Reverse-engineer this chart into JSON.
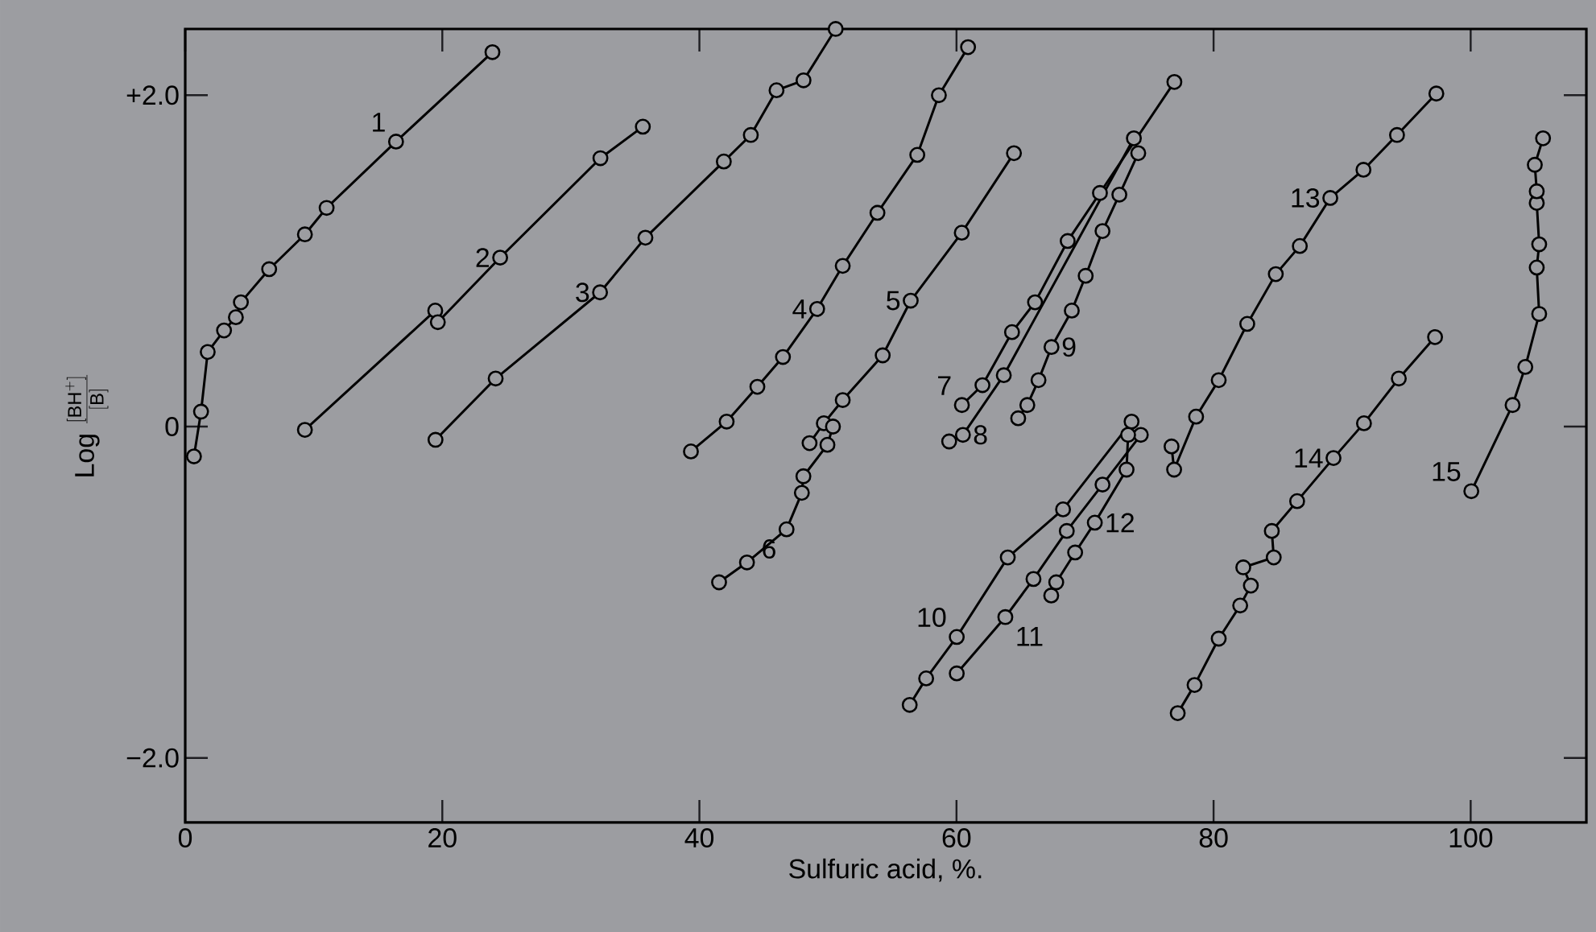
{
  "chart_data": {
    "type": "line",
    "xlabel": "Sulfuric acid, %.",
    "ylabel": "\\mathrm{Log}\\;\\frac{[\\mathrm{BH}^{+}]}{[\\mathrm{B}]}",
    "xlim": [
      0,
      109
    ],
    "ylim": [
      -2.39,
      2.4
    ],
    "xticks": [
      0,
      20,
      40,
      60,
      80,
      100
    ],
    "yticks": [
      {
        "value": 2,
        "label": "+2.0"
      },
      {
        "value": 0,
        "label": "0"
      },
      {
        "value": -2,
        "label": "−2.0"
      }
    ],
    "marker": "circle",
    "series": [
      {
        "name": "1",
        "color": "#000000",
        "x": [
          0.68,
          1.23,
          1.75,
          3.02,
          3.94,
          4.33,
          6.53,
          9.31,
          11.0,
          16.4,
          23.9
        ],
        "values": [
          -0.18,
          0.09,
          0.45,
          0.58,
          0.66,
          0.75,
          0.95,
          1.16,
          1.32,
          1.72,
          2.26
        ]
      },
      {
        "name": "2",
        "color": "#000000",
        "x": [
          9.31,
          19.45,
          19.65,
          24.5,
          32.3,
          35.6
        ],
        "values": [
          -0.02,
          0.7,
          0.63,
          1.02,
          1.62,
          1.81
        ]
      },
      {
        "name": "3",
        "color": "#000000",
        "x": [
          19.47,
          24.15,
          32.27,
          35.8,
          41.9,
          44.0,
          46.0,
          48.1,
          50.6
        ],
        "values": [
          -0.08,
          0.29,
          0.81,
          1.14,
          1.6,
          1.76,
          2.03,
          2.09,
          2.4
        ]
      },
      {
        "name": "4",
        "color": "#000000",
        "x": [
          39.34,
          42.12,
          44.51,
          46.5,
          49.16,
          51.15,
          53.85,
          56.95,
          58.63,
          60.9
        ],
        "values": [
          -0.15,
          0.03,
          0.24,
          0.42,
          0.71,
          0.97,
          1.29,
          1.64,
          2.0,
          2.29
        ]
      },
      {
        "name": "5",
        "color": "#000000",
        "x": [
          48.57,
          49.68,
          51.15,
          54.26,
          56.44,
          60.41,
          64.47
        ],
        "values": [
          -0.1,
          0.02,
          0.16,
          0.43,
          0.76,
          1.17,
          1.65
        ]
      },
      {
        "name": "6",
        "color": "#000000",
        "x": [
          41.53,
          43.7,
          46.78,
          47.97,
          48.09,
          49.96,
          50.39
        ],
        "values": [
          -0.94,
          -0.82,
          -0.62,
          -0.4,
          -0.3,
          -0.11,
          0.0
        ]
      },
      {
        "name": "7",
        "color": "#000000",
        "x": [
          60.42,
          62.02,
          64.32,
          66.11,
          68.65,
          71.16,
          74.09,
          76.95
        ],
        "values": [
          0.13,
          0.25,
          0.57,
          0.75,
          1.12,
          1.41,
          null,
          2.08
        ]
      },
      {
        "name": "8",
        "color": "#000000",
        "x": [
          59.43,
          60.5,
          63.68,
          73.8
        ],
        "values": [
          -0.09,
          -0.05,
          0.31,
          1.74
        ]
      },
      {
        "name": "9",
        "color": "#000000",
        "x": [
          64.8,
          65.51,
          66.38,
          67.39,
          68.97,
          70.05,
          71.36,
          72.67,
          74.14
        ],
        "values": [
          0.05,
          0.13,
          0.28,
          0.48,
          0.7,
          0.91,
          1.18,
          1.4,
          1.65
        ]
      },
      {
        "name": "10",
        "color": "#000000",
        "x": [
          56.36,
          57.64,
          60.02,
          63.99,
          68.29,
          73.62
        ],
        "values": [
          -1.68,
          -1.52,
          -1.27,
          -0.79,
          -0.5,
          0.03
        ]
      },
      {
        "name": "11",
        "color": "#000000",
        "x": [
          60.02,
          63.8,
          65.99,
          68.58,
          71.36,
          74.34
        ],
        "values": [
          -1.49,
          -1.15,
          -0.92,
          -0.63,
          -0.35,
          -0.05
        ]
      },
      {
        "name": "12",
        "color": "#000000",
        "x": [
          67.37,
          67.76,
          69.23,
          70.76,
          73.23,
          73.35
        ],
        "values": [
          -1.02,
          -0.94,
          -0.76,
          -0.58,
          -0.26,
          -0.05
        ]
      },
      {
        "name": "13",
        "color": "#000000",
        "x": [
          76.73,
          76.93,
          78.64,
          80.4,
          82.62,
          84.84,
          86.71,
          89.08,
          91.66,
          94.27,
          97.33
        ],
        "values": [
          -0.12,
          -0.26,
          0.06,
          0.28,
          0.62,
          0.92,
          1.09,
          1.38,
          1.55,
          1.76,
          2.01
        ]
      },
      {
        "name": "14",
        "color": "#000000",
        "x": [
          77.21,
          78.52,
          80.4,
          82.07,
          82.9,
          82.31,
          84.68,
          84.53,
          86.5,
          89.33,
          91.7,
          94.41,
          97.23
        ],
        "values": [
          -1.73,
          -1.56,
          -1.28,
          -1.08,
          -0.96,
          -0.85,
          -0.79,
          -0.63,
          -0.45,
          -0.19,
          0.02,
          0.29,
          0.54
        ]
      },
      {
        "name": "15",
        "color": "#000000",
        "x": [
          100.05,
          103.26,
          104.25,
          105.33,
          105.14,
          105.33,
          105.14,
          105.14,
          104.99,
          105.63
        ],
        "values": [
          -0.39,
          0.13,
          0.36,
          0.68,
          0.96,
          1.1,
          1.35,
          1.42,
          1.58,
          1.74
        ]
      }
    ]
  }
}
